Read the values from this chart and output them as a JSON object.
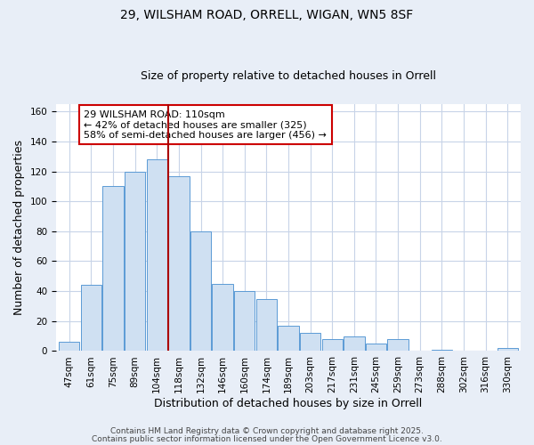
{
  "title": "29, WILSHAM ROAD, ORRELL, WIGAN, WN5 8SF",
  "subtitle": "Size of property relative to detached houses in Orrell",
  "xlabel": "Distribution of detached houses by size in Orrell",
  "ylabel": "Number of detached properties",
  "categories": [
    "47sqm",
    "61sqm",
    "75sqm",
    "89sqm",
    "104sqm",
    "118sqm",
    "132sqm",
    "146sqm",
    "160sqm",
    "174sqm",
    "189sqm",
    "203sqm",
    "217sqm",
    "231sqm",
    "245sqm",
    "259sqm",
    "273sqm",
    "288sqm",
    "302sqm",
    "316sqm",
    "330sqm"
  ],
  "values": [
    6,
    44,
    110,
    120,
    128,
    117,
    80,
    45,
    40,
    35,
    17,
    12,
    8,
    10,
    5,
    8,
    0,
    1,
    0,
    0,
    2
  ],
  "bar_color": "#cfe0f2",
  "bar_edge_color": "#5b9bd5",
  "vline_x": 4.5,
  "vline_color": "#aa0000",
  "annotation_text": "29 WILSHAM ROAD: 110sqm\n← 42% of detached houses are smaller (325)\n58% of semi-detached houses are larger (456) →",
  "annotation_box_color": "#ffffff",
  "annotation_box_edge": "#cc0000",
  "ylim": [
    0,
    165
  ],
  "yticks": [
    0,
    20,
    40,
    60,
    80,
    100,
    120,
    140,
    160
  ],
  "footer_line1": "Contains HM Land Registry data © Crown copyright and database right 2025.",
  "footer_line2": "Contains public sector information licensed under the Open Government Licence v3.0.",
  "fig_background_color": "#e8eef7",
  "plot_background_color": "#ffffff",
  "title_fontsize": 10,
  "subtitle_fontsize": 9,
  "axis_label_fontsize": 9,
  "tick_fontsize": 7.5,
  "annotation_fontsize": 8,
  "footer_fontsize": 6.5
}
